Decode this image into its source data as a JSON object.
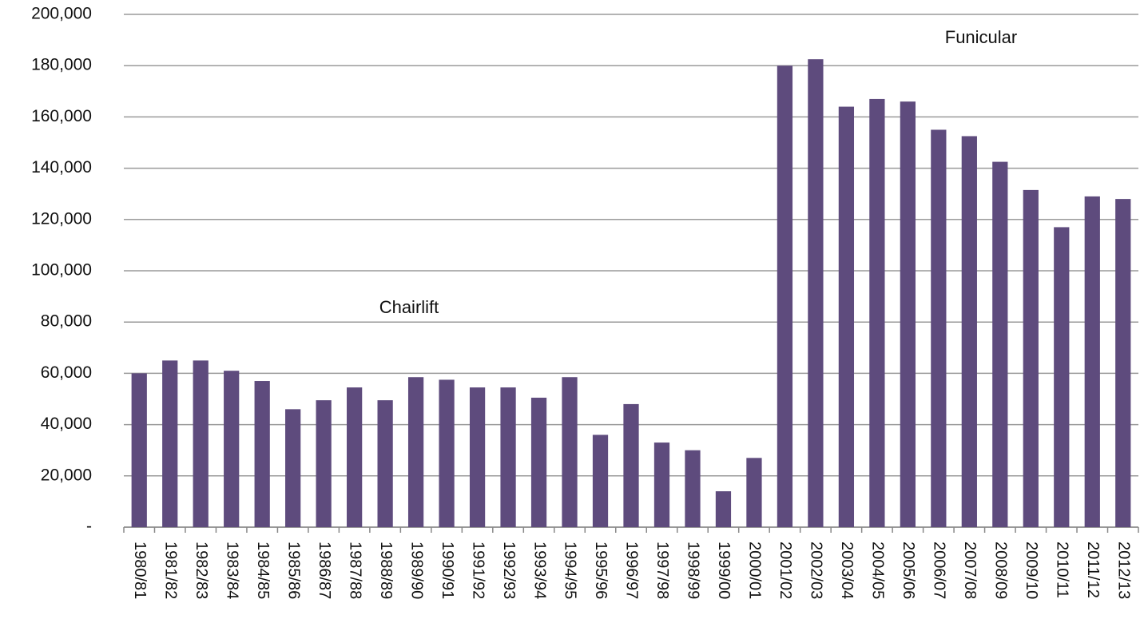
{
  "chart_data": {
    "type": "bar",
    "categories": [
      "1980/81",
      "1981/82",
      "1982/83",
      "1983/84",
      "1984/85",
      "1985/86",
      "1986/87",
      "1987/88",
      "1988/89",
      "1989/90",
      "1990/91",
      "1991/92",
      "1992/93",
      "1993/94",
      "1994/95",
      "1995/96",
      "1996/97",
      "1997/98",
      "1998/99",
      "1999/00",
      "2000/01",
      "2001/02",
      "2002/03",
      "2003/04",
      "2004/05",
      "2005/06",
      "2006/07",
      "2007/08",
      "2008/09",
      "2009/10",
      "2010/11",
      "2011/12",
      "2012/13"
    ],
    "values": [
      60000,
      65000,
      65000,
      61000,
      57000,
      46000,
      49500,
      54500,
      49500,
      58500,
      57500,
      54500,
      54500,
      50500,
      58500,
      36000,
      48000,
      33000,
      30000,
      14000,
      27000,
      180000,
      182500,
      164000,
      167000,
      166000,
      155000,
      152500,
      142500,
      131500,
      117000,
      129000,
      128000
    ],
    "color": "#5e4b7d",
    "ylim": [
      0,
      200000
    ],
    "yticks": [
      {
        "value": 0,
        "label": "-"
      },
      {
        "value": 20000,
        "label": "20,000"
      },
      {
        "value": 40000,
        "label": "40,000"
      },
      {
        "value": 60000,
        "label": "60,000"
      },
      {
        "value": 80000,
        "label": "80,000"
      },
      {
        "value": 100000,
        "label": "100,000"
      },
      {
        "value": 120000,
        "label": "120,000"
      },
      {
        "value": 140000,
        "label": "140,000"
      },
      {
        "value": 160000,
        "label": "160,000"
      },
      {
        "value": 180000,
        "label": "180,000"
      },
      {
        "value": 200000,
        "label": "200,000"
      }
    ],
    "grid": true,
    "annotations": [
      "Chairlift",
      "Funicular"
    ]
  }
}
